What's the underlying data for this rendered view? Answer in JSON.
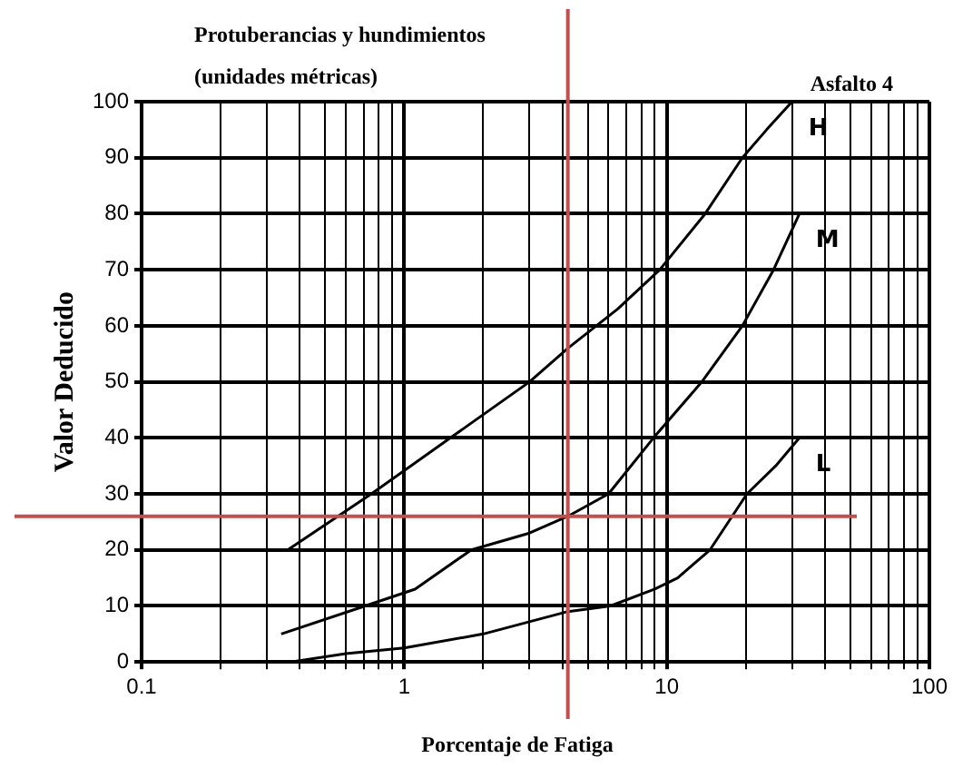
{
  "chart_data": {
    "type": "line",
    "title": "Protuberancias y hundimientos",
    "subtitle": "(unidades métricas)",
    "annotations": [
      "Asfalto 4"
    ],
    "xlabel": "Porcentaje de Fatiga",
    "ylabel": "Valor Deducido",
    "log": "x",
    "xlim": [
      0.1,
      100
    ],
    "ylim": [
      0,
      100
    ],
    "xticks": [
      0.1,
      {
        "value": 0.2,
        "label": null
      },
      {
        "value": 0.3,
        "label": null
      },
      {
        "value": 0.4,
        "label": null
      },
      {
        "value": 0.5,
        "label": null
      },
      {
        "value": 0.6,
        "label": null
      },
      {
        "value": 0.7,
        "label": null
      },
      {
        "value": 0.8,
        "label": null
      },
      {
        "value": 0.9,
        "label": null
      },
      1,
      {
        "value": 2,
        "label": null
      },
      {
        "value": 3,
        "label": null
      },
      {
        "value": 4,
        "label": null
      },
      {
        "value": 5,
        "label": null
      },
      {
        "value": 6,
        "label": null
      },
      {
        "value": 7,
        "label": null
      },
      {
        "value": 8,
        "label": null
      },
      {
        "value": 9,
        "label": null
      },
      10,
      {
        "value": 20,
        "label": null
      },
      {
        "value": 30,
        "label": null
      },
      {
        "value": 40,
        "label": null
      },
      {
        "value": 50,
        "label": null
      },
      {
        "value": 60,
        "label": null
      },
      {
        "value": 70,
        "label": null
      },
      {
        "value": 80,
        "label": null
      },
      {
        "value": 90,
        "label": null
      },
      100
    ],
    "yticks": [
      0,
      10,
      20,
      30,
      40,
      50,
      60,
      70,
      80,
      90,
      100
    ],
    "grid": true,
    "legend": false,
    "marker": "none",
    "line_style": "solid",
    "series": [
      {
        "name": "H",
        "color": "#000000",
        "x": [
          0.36,
          0.75,
          1.5,
          3.0,
          4.2,
          6.5,
          9.4,
          14,
          19.4,
          24,
          30
        ],
        "values": [
          20,
          30,
          40,
          50,
          56,
          63,
          70,
          80,
          90,
          95,
          100
        ]
      },
      {
        "name": "M",
        "color": "#000000",
        "x": [
          0.34,
          0.71,
          1.1,
          1.8,
          3.0,
          4.2,
          6.0,
          8.9,
          13.6,
          19.4,
          25.5,
          32
        ],
        "values": [
          5,
          10,
          13,
          20,
          23,
          26,
          30,
          40,
          50,
          60,
          70,
          80
        ]
      },
      {
        "name": "L",
        "color": "#000000",
        "x": [
          0.37,
          0.6,
          1.0,
          2.0,
          4.2,
          6.1,
          9,
          11,
          14.6,
          20.2,
          26,
          32
        ],
        "values": [
          0,
          1.5,
          2.5,
          5,
          9,
          10,
          13,
          15,
          20,
          30,
          35,
          40
        ]
      }
    ],
    "ref_lines": [
      {
        "axis": "x",
        "value": 4.2,
        "color": "#c0504d"
      },
      {
        "axis": "y",
        "value": 26,
        "color": "#c0504d"
      }
    ]
  }
}
